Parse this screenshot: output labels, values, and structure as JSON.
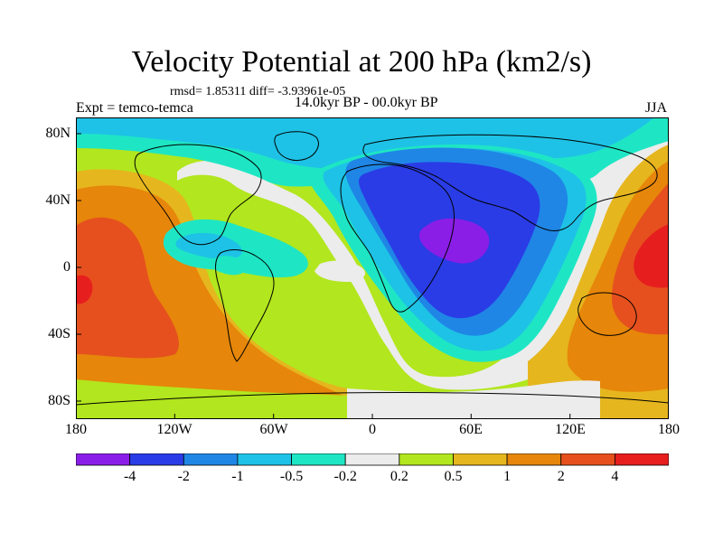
{
  "title": "Velocity Potential at 200 hPa (km2/s)",
  "stats": "rmsd= 1.85311 diff= -3.93961e-05",
  "expt": "Expt = temco-temca",
  "period": "14.0kyr BP - 00.0kyr BP",
  "season": "JJA",
  "lat_labels": [
    "80N",
    "40N",
    "0",
    "40S",
    "80S"
  ],
  "lon_labels": [
    "180",
    "120W",
    "60W",
    "0",
    "60E",
    "120E",
    "180"
  ],
  "colorbar": {
    "labels": [
      "-4",
      "-2",
      "-1",
      "-0.5",
      "-0.2",
      "0.2",
      "0.5",
      "1",
      "2",
      "4"
    ],
    "colors": [
      "#8a1ee6",
      "#2a3ce6",
      "#1f86e6",
      "#1ec2e6",
      "#1ee6c4",
      "#ececec",
      "#b2e61e",
      "#e6b61e",
      "#e6860a",
      "#e6501e",
      "#e61e1e"
    ]
  },
  "map": {
    "colors": {
      "c_neg4": "#8a1ee6",
      "c_neg2": "#2a3ce6",
      "c_neg1": "#1f86e6",
      "c_neg05": "#1ec2e6",
      "c_neg02": "#1ee6c4",
      "c_zero": "#ececec",
      "c_02": "#b2e61e",
      "c_05": "#e6b61e",
      "c_1": "#e6860a",
      "c_2": "#e6501e",
      "c_4": "#e61e1e"
    }
  }
}
